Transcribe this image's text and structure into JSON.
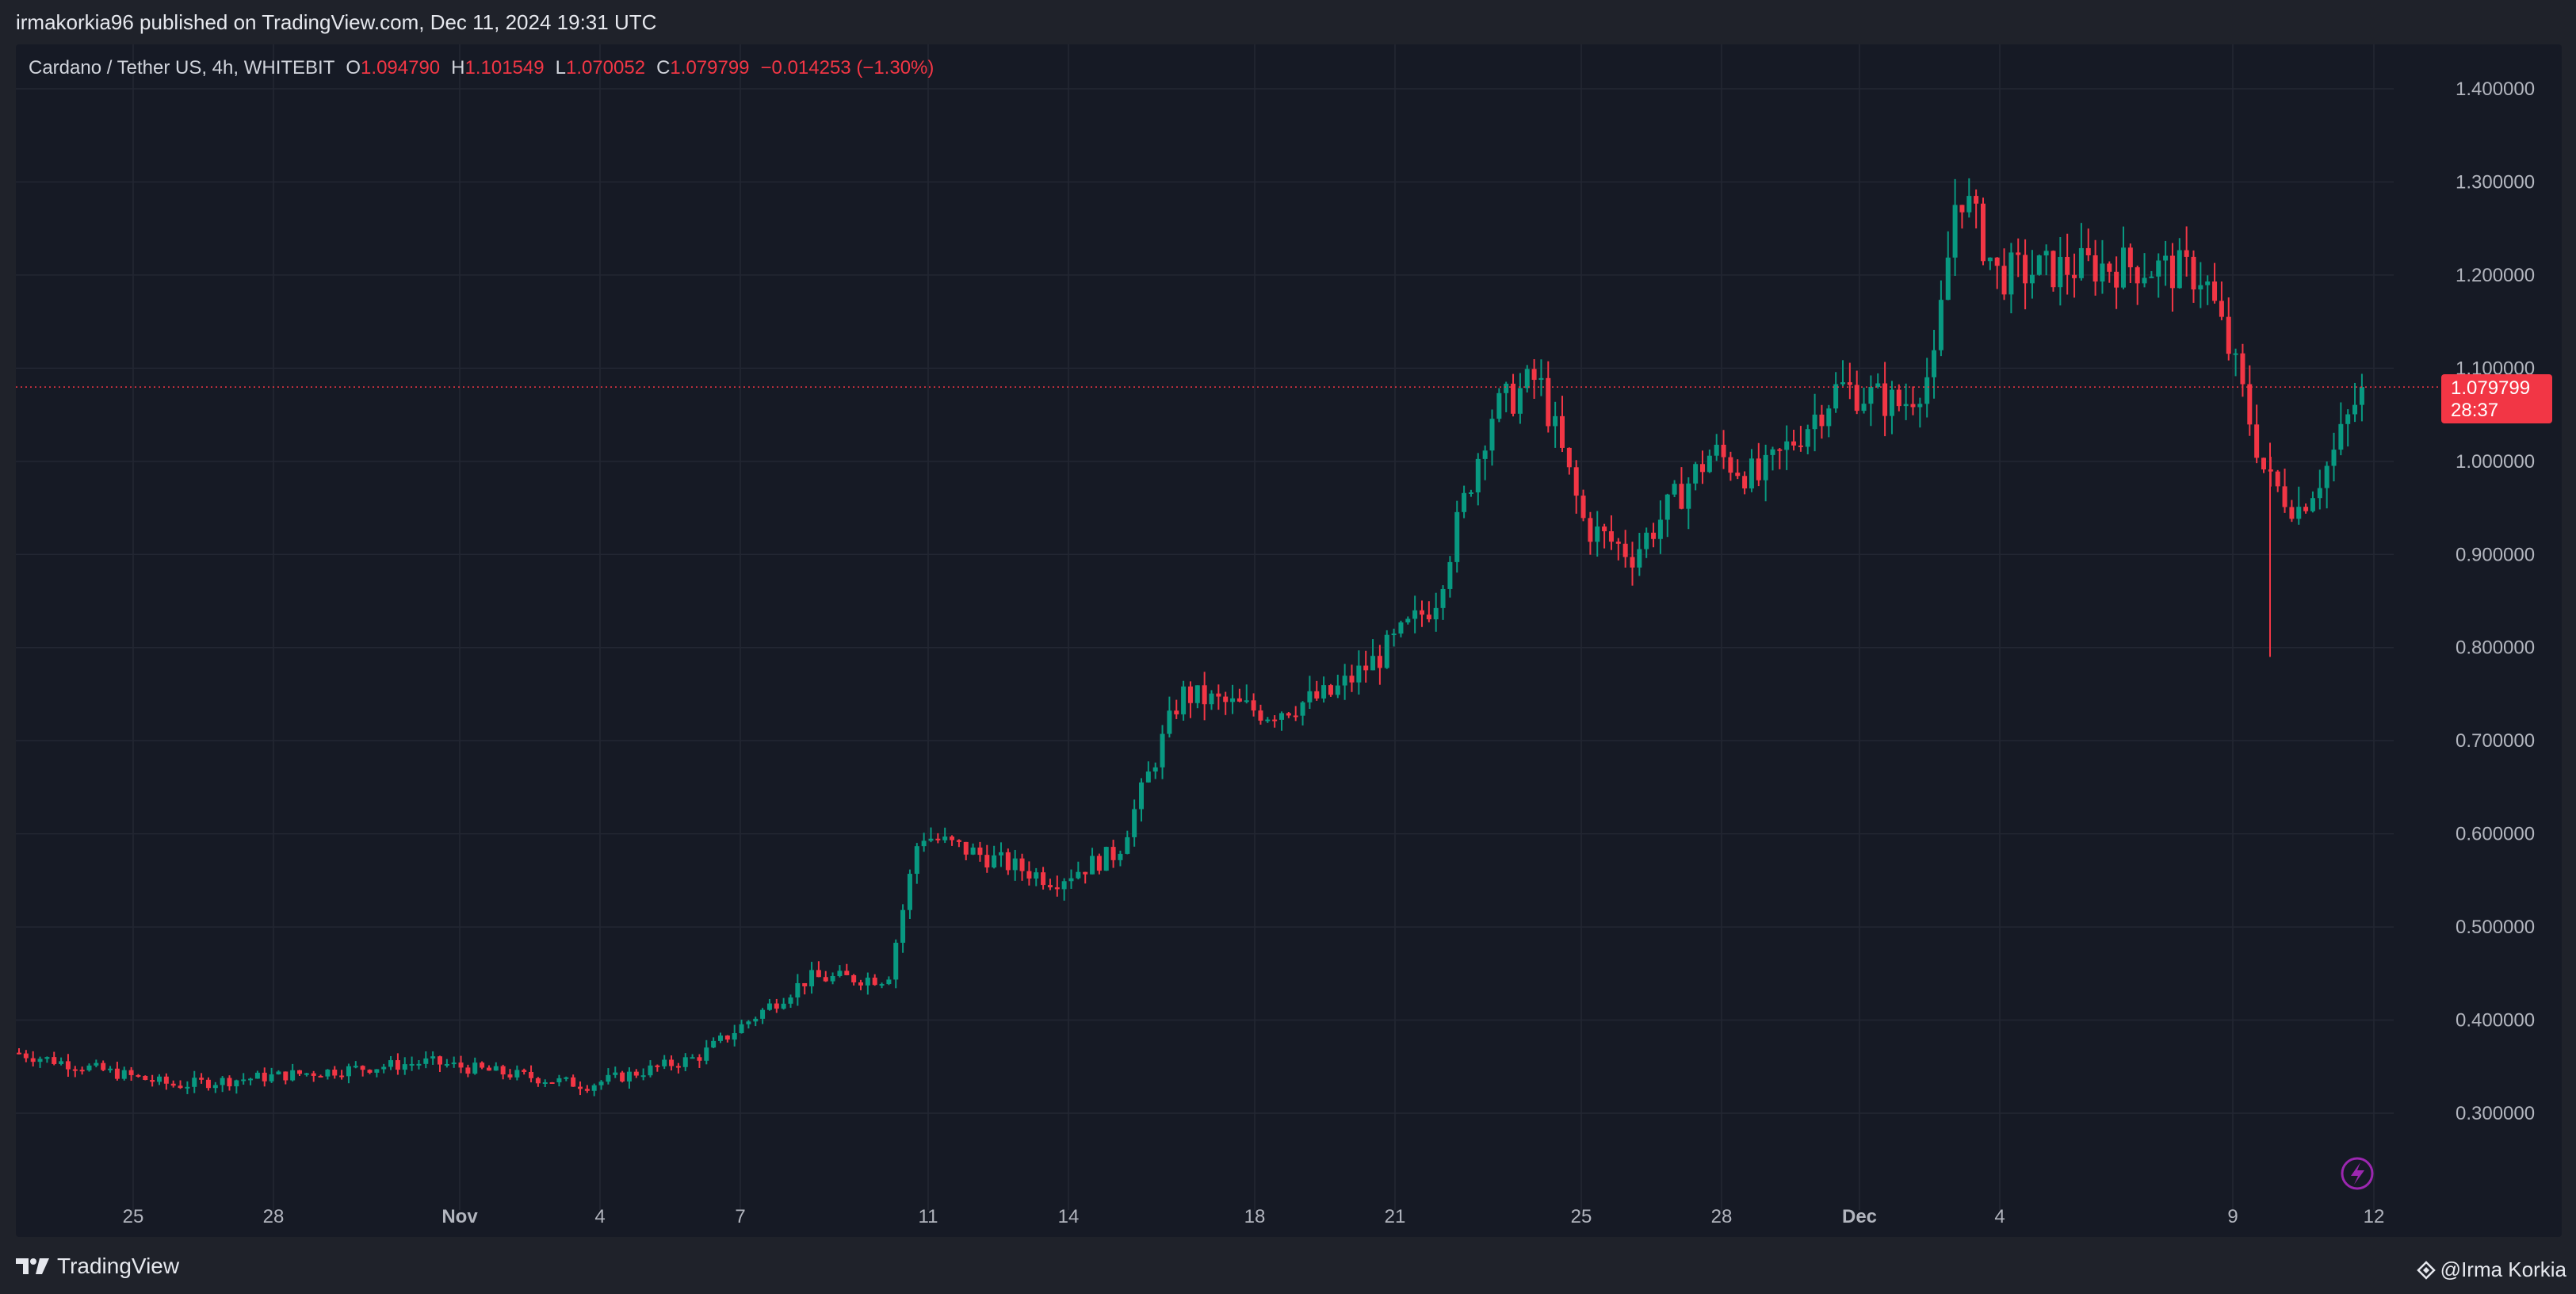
{
  "header": {
    "publish_line": "irmakorkia96 published on TradingView.com, Dec 11, 2024 19:31 UTC"
  },
  "legend": {
    "symbol": "Cardano / Tether US, 4h, WHITEBIT",
    "o_label": "O",
    "o_value": "1.094790",
    "h_label": "H",
    "h_value": "1.101549",
    "l_label": "L",
    "l_value": "1.070052",
    "c_label": "C",
    "c_value": "1.079799",
    "change": "−0.014253 (−1.30%)"
  },
  "price_tag": {
    "price": "1.079799",
    "countdown": "28:37"
  },
  "footer": {
    "brand": "TradingView",
    "author": "@Irma Korkia"
  },
  "colors": {
    "up": "#089981",
    "down": "#f23645",
    "background": "#161a25",
    "grid": "#232733",
    "accent_purple": "#9c27b0"
  },
  "chart_data": {
    "type": "candlestick",
    "title": "Cardano / Tether US, 4h, WHITEBIT",
    "ylim": [
      0.215,
      1.45
    ],
    "y_ticks": [
      "1.400000",
      "1.300000",
      "1.200000",
      "1.100000",
      "1.000000",
      "0.900000",
      "0.800000",
      "0.700000",
      "0.600000",
      "0.500000",
      "0.400000",
      "0.300000"
    ],
    "x_ticks": [
      "25",
      "28",
      "Nov",
      "4",
      "7",
      "11",
      "14",
      "18",
      "21",
      "25",
      "28",
      "Dec",
      "4",
      "9",
      "12"
    ],
    "last_price": 1.079799,
    "candle_interval": "4h",
    "key_points_close": [
      {
        "label": "Oct 23",
        "value": 0.365
      },
      {
        "label": "Oct 26",
        "value": 0.33
      },
      {
        "label": "Nov 1",
        "value": 0.355
      },
      {
        "label": "Nov 5",
        "value": 0.33
      },
      {
        "label": "Nov 7",
        "value": 0.36
      },
      {
        "label": "Nov 9",
        "value": 0.445
      },
      {
        "label": "Nov 11",
        "value": 0.6
      },
      {
        "label": "Nov 13",
        "value": 0.55
      },
      {
        "label": "Nov 16",
        "value": 0.75
      },
      {
        "label": "Nov 19",
        "value": 0.73
      },
      {
        "label": "Nov 21",
        "value": 0.79
      },
      {
        "label": "Nov 23",
        "value": 1.09
      },
      {
        "label": "Nov 26",
        "value": 0.93
      },
      {
        "label": "Nov 28",
        "value": 1.01
      },
      {
        "label": "Dec 1",
        "value": 1.06
      },
      {
        "label": "Dec 3",
        "value": 1.3
      },
      {
        "label": "Dec 5",
        "value": 1.2
      },
      {
        "label": "Dec 8",
        "value": 1.21
      },
      {
        "label": "Dec 9",
        "value": 1.1
      },
      {
        "label": "Dec 10",
        "value": 0.95
      },
      {
        "label": "Dec 11",
        "value": 1.079799
      }
    ]
  }
}
